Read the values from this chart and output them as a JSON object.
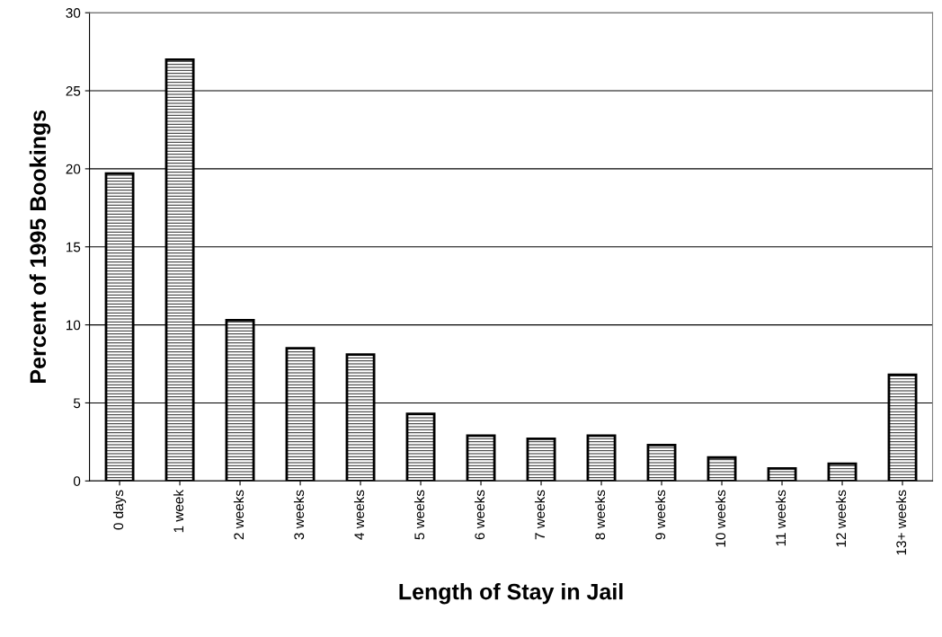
{
  "chart_data": {
    "type": "bar",
    "xlabel": "Length of Stay in Jail",
    "ylabel": "Percent of 1995 Bookings",
    "categories": [
      "0 days",
      "1 week",
      "2 weeks",
      "3 weeks",
      "4 weeks",
      "5 weeks",
      "6 weeks",
      "7 weeks",
      "8 weeks",
      "9 weeks",
      "10 weeks",
      "11 weeks",
      "12 weeks",
      "13+ weeks"
    ],
    "values": [
      19.7,
      27.0,
      10.3,
      8.5,
      8.1,
      4.3,
      2.9,
      2.7,
      2.9,
      2.3,
      1.5,
      0.8,
      1.1,
      6.8
    ],
    "color": "#000000",
    "ylim": [
      0,
      30
    ],
    "yticks": [
      0,
      5,
      10,
      15,
      20,
      25,
      30
    ],
    "grid": "y",
    "legend": false
  }
}
